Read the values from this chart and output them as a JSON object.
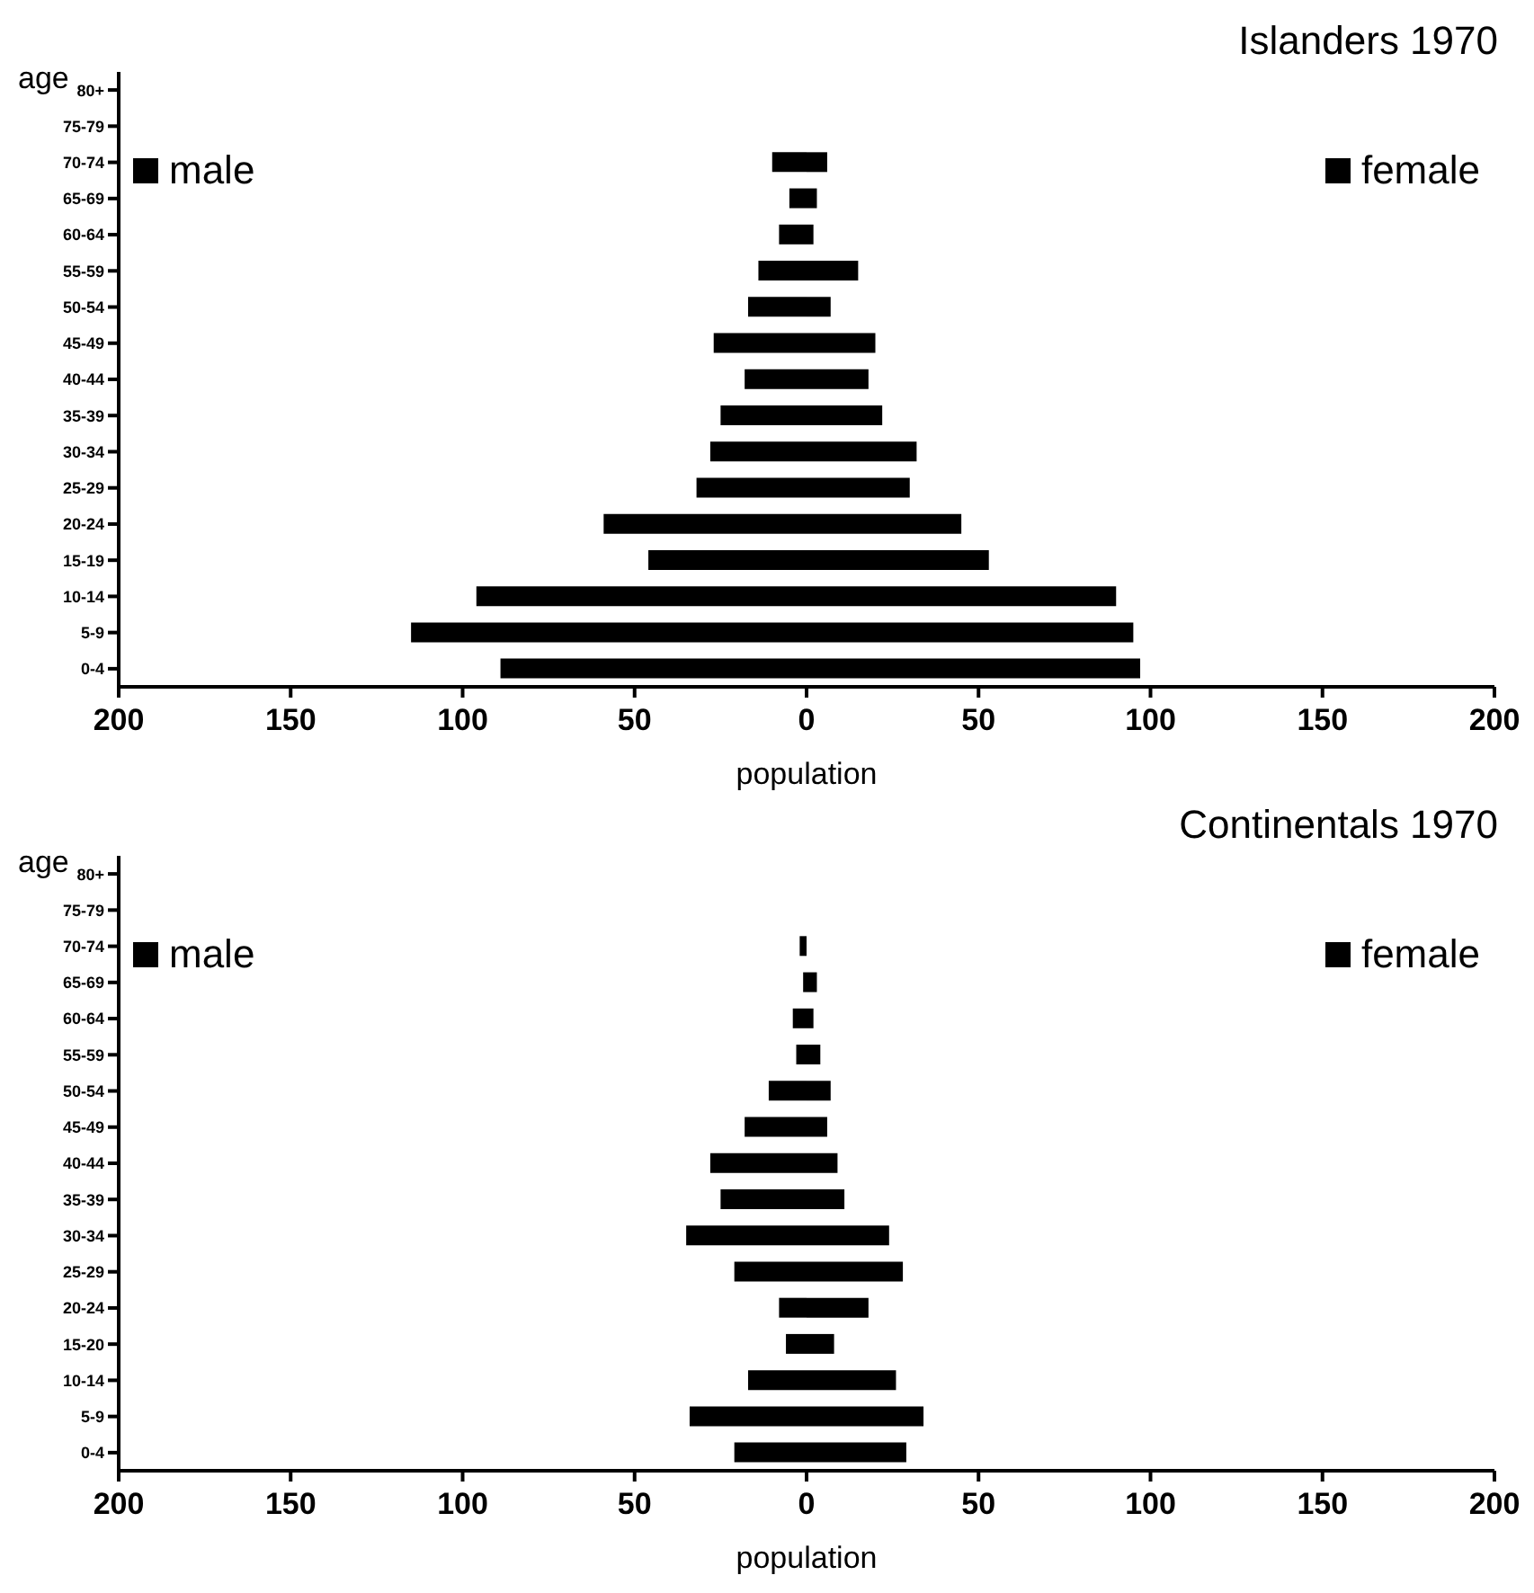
{
  "chart_data": [
    {
      "type": "bar",
      "orientation": "horizontal",
      "stacked": true,
      "title": "Islanders 1970",
      "xlabel": "population",
      "ylabel": "age",
      "legend": "top",
      "categories": [
        "80+",
        "75-79",
        "70-74",
        "65-69",
        "60-64",
        "55-59",
        "50-54",
        "45-49",
        "40-44",
        "35-39",
        "30-34",
        "25-29",
        "20-24",
        "15-19",
        "10-14",
        "5-9",
        "0-4"
      ],
      "series": [
        {
          "name": "male",
          "color": "#000000",
          "values": [
            0,
            0,
            -10,
            -5,
            -8,
            -14,
            -17,
            -27,
            -18,
            -25,
            -28,
            -32,
            -59,
            -46,
            -96,
            -115,
            -89
          ]
        },
        {
          "name": "female",
          "color": "#000000",
          "values": [
            0,
            0,
            6,
            3,
            2,
            15,
            7,
            20,
            18,
            22,
            32,
            30,
            45,
            53,
            90,
            95,
            97
          ]
        }
      ],
      "xlim": [
        -200,
        200
      ],
      "xticks": [
        {
          "value": -200,
          "label": "200"
        },
        {
          "value": -150,
          "label": "150"
        },
        {
          "value": -100,
          "label": "100"
        },
        {
          "value": -50,
          "label": "50"
        },
        0,
        50,
        100,
        150,
        200
      ]
    },
    {
      "type": "bar",
      "orientation": "horizontal",
      "stacked": true,
      "title": "Continentals 1970",
      "xlabel": "population",
      "ylabel": "age",
      "legend": "top",
      "categories": [
        "80+",
        "75-79",
        "70-74",
        "65-69",
        "60-64",
        "55-59",
        "50-54",
        "45-49",
        "40-44",
        "35-39",
        "30-34",
        "25-29",
        "20-24",
        "15-20",
        "10-14",
        "5-9",
        "0-4"
      ],
      "series": [
        {
          "name": "male",
          "color": "#000000",
          "values": [
            0,
            0,
            -2,
            -1,
            -4,
            -3,
            -11,
            -18,
            -28,
            -25,
            -35,
            -21,
            -8,
            -6,
            -17,
            -34,
            -21
          ]
        },
        {
          "name": "female",
          "color": "#000000",
          "values": [
            0,
            0,
            0,
            3,
            2,
            4,
            7,
            6,
            9,
            11,
            24,
            28,
            18,
            8,
            26,
            34,
            29
          ]
        }
      ],
      "xlim": [
        -200,
        200
      ],
      "xticks": [
        {
          "value": -200,
          "label": "200"
        },
        {
          "value": -150,
          "label": "150"
        },
        {
          "value": -100,
          "label": "100"
        },
        {
          "value": -50,
          "label": "50"
        },
        0,
        50,
        100,
        150,
        200
      ]
    }
  ]
}
